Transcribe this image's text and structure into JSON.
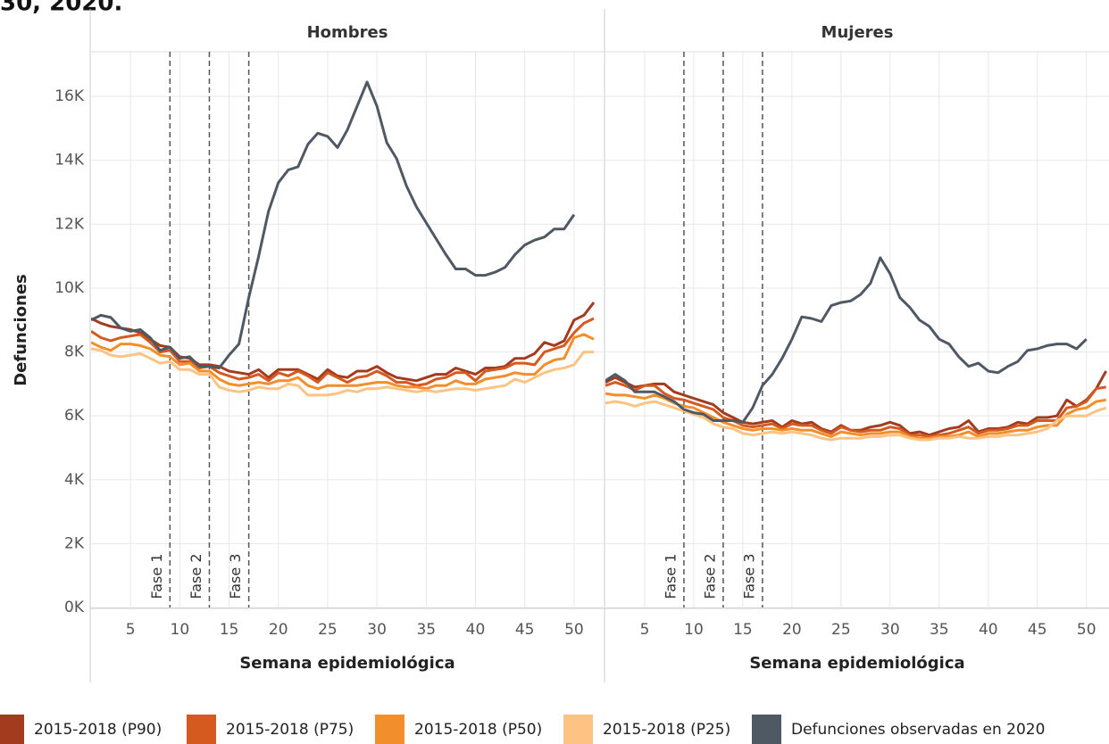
{
  "header": "30, 2020.",
  "chart_data": [
    {
      "type": "line",
      "title": "Hombres",
      "x_label": "Semana epidemiológica",
      "y_label": "Defunciones",
      "xlim": [
        1,
        53
      ],
      "xticks": [
        5,
        10,
        15,
        20,
        25,
        30,
        35,
        40,
        45,
        50
      ],
      "ylim": [
        0,
        17400
      ],
      "yticks": [
        {
          "value": 0,
          "label": "0K"
        },
        {
          "value": 2000,
          "label": "2K"
        },
        {
          "value": 4000,
          "label": "4K"
        },
        {
          "value": 6000,
          "label": "6K"
        },
        {
          "value": 8000,
          "label": "8K"
        },
        {
          "value": 10000,
          "label": "10K"
        },
        {
          "value": 12000,
          "label": "12K"
        },
        {
          "value": 14000,
          "label": "14K"
        },
        {
          "value": 16000,
          "label": "16K"
        }
      ],
      "grid": true,
      "phases": [
        {
          "x": 9,
          "label": "Fase 1"
        },
        {
          "x": 13,
          "label": "Fase 2"
        },
        {
          "x": 17,
          "label": "Fase 3"
        }
      ],
      "x": [
        1,
        2,
        3,
        4,
        5,
        6,
        7,
        8,
        9,
        10,
        11,
        12,
        13,
        14,
        15,
        16,
        17,
        18,
        19,
        20,
        21,
        22,
        23,
        24,
        25,
        26,
        27,
        28,
        29,
        30,
        31,
        32,
        33,
        34,
        35,
        36,
        37,
        38,
        39,
        40,
        41,
        42,
        43,
        44,
        45,
        46,
        47,
        48,
        49,
        50,
        51,
        52
      ],
      "series": [
        {
          "name": "2015-2018 (P90)",
          "color": "#a33b1f",
          "values": [
            9050,
            8900,
            8800,
            8750,
            8700,
            8600,
            8400,
            8200,
            8150,
            7850,
            7800,
            7600,
            7600,
            7550,
            7400,
            7350,
            7300,
            7450,
            7200,
            7450,
            7450,
            7450,
            7300,
            7150,
            7450,
            7250,
            7200,
            7400,
            7400,
            7550,
            7350,
            7200,
            7150,
            7100,
            7200,
            7300,
            7300,
            7500,
            7400,
            7300,
            7500,
            7500,
            7550,
            7800,
            7800,
            7950,
            8300,
            8200,
            8350,
            9000,
            9150,
            9550
          ]
        },
        {
          "name": "2015-2018 (P75)",
          "color": "#d45a1f",
          "values": [
            8650,
            8450,
            8350,
            8450,
            8500,
            8550,
            8300,
            8000,
            8050,
            7700,
            7700,
            7500,
            7550,
            7350,
            7250,
            7150,
            7200,
            7300,
            7100,
            7350,
            7250,
            7400,
            7250,
            7050,
            7350,
            7200,
            7050,
            7200,
            7250,
            7400,
            7250,
            7050,
            7050,
            6950,
            7000,
            7150,
            7200,
            7350,
            7350,
            7100,
            7400,
            7450,
            7500,
            7650,
            7650,
            7600,
            8000,
            8100,
            8200,
            8600,
            8900,
            9050
          ]
        },
        {
          "name": "2015-2018 (P50)",
          "color": "#f28e2b",
          "values": [
            8300,
            8150,
            8050,
            8250,
            8250,
            8200,
            8100,
            7900,
            7850,
            7600,
            7650,
            7400,
            7400,
            7150,
            7000,
            6950,
            7000,
            7050,
            7000,
            7100,
            7100,
            7200,
            6950,
            6850,
            6950,
            6950,
            6950,
            6950,
            7000,
            7050,
            7050,
            6950,
            6900,
            6900,
            6850,
            6950,
            6950,
            7100,
            7000,
            7000,
            7150,
            7200,
            7250,
            7350,
            7300,
            7300,
            7600,
            7750,
            7800,
            8450,
            8550,
            8400
          ]
        },
        {
          "name": "2015-2018 (P25)",
          "color": "#fdc383",
          "values": [
            8100,
            8050,
            7900,
            7850,
            7900,
            7950,
            7800,
            7650,
            7700,
            7450,
            7450,
            7300,
            7300,
            6900,
            6800,
            6750,
            6800,
            6900,
            6850,
            6850,
            7000,
            6950,
            6650,
            6650,
            6650,
            6700,
            6800,
            6750,
            6850,
            6850,
            6900,
            6850,
            6800,
            6750,
            6800,
            6750,
            6800,
            6850,
            6850,
            6800,
            6850,
            6900,
            6950,
            7150,
            7050,
            7200,
            7350,
            7450,
            7500,
            7600,
            8000,
            8000
          ]
        },
        {
          "name": "Defunciones observadas en 2020",
          "color": "#4e5964",
          "values": [
            9000,
            9150,
            9080,
            8750,
            8650,
            8700,
            8450,
            8050,
            8150,
            7800,
            7850,
            7550,
            7550,
            7500,
            7900,
            8250,
            9700,
            11000,
            12400,
            13300,
            13700,
            13800,
            14500,
            14850,
            14750,
            14400,
            14950,
            15700,
            16450,
            15700,
            14550,
            14050,
            13200,
            12550,
            12050,
            11550,
            11050,
            10600,
            10600,
            10400,
            10400,
            10500,
            10650,
            11050,
            11350,
            11500,
            11600,
            11850,
            11850,
            12300,
            null,
            null
          ]
        }
      ]
    },
    {
      "type": "line",
      "title": "Mujeres",
      "x_label": "Semana epidemiológica",
      "xlim": [
        1,
        52.3
      ],
      "xticks": [
        5,
        10,
        15,
        20,
        25,
        30,
        35,
        40,
        45,
        50
      ],
      "ylim": [
        0,
        17400
      ],
      "grid": true,
      "phases": [
        {
          "x": 9,
          "label": "Fase 1"
        },
        {
          "x": 13,
          "label": "Fase 2"
        },
        {
          "x": 17,
          "label": "Fase 3"
        }
      ],
      "x": [
        1,
        2,
        3,
        4,
        5,
        6,
        7,
        8,
        9,
        10,
        11,
        12,
        13,
        14,
        15,
        16,
        17,
        18,
        19,
        20,
        21,
        22,
        23,
        24,
        25,
        26,
        27,
        28,
        29,
        30,
        31,
        32,
        33,
        34,
        35,
        36,
        37,
        38,
        39,
        40,
        41,
        42,
        43,
        44,
        45,
        46,
        47,
        48,
        49,
        50,
        51,
        52
      ],
      "series": [
        {
          "name": "2015-2018 (P90)",
          "color": "#a33b1f",
          "values": [
            7050,
            7200,
            7050,
            6900,
            6950,
            7000,
            7000,
            6750,
            6650,
            6550,
            6450,
            6350,
            6100,
            5950,
            5800,
            5750,
            5800,
            5850,
            5650,
            5850,
            5750,
            5800,
            5600,
            5500,
            5700,
            5550,
            5550,
            5650,
            5700,
            5800,
            5700,
            5450,
            5500,
            5400,
            5500,
            5600,
            5650,
            5850,
            5500,
            5600,
            5600,
            5650,
            5800,
            5750,
            5950,
            5950,
            6000,
            6500,
            6300,
            6500,
            6850,
            7400
          ]
        },
        {
          "name": "2015-2018 (P75)",
          "color": "#d45a1f",
          "values": [
            6950,
            7050,
            6950,
            6800,
            6950,
            6950,
            6700,
            6550,
            6500,
            6400,
            6300,
            6200,
            5950,
            5850,
            5700,
            5650,
            5700,
            5750,
            5600,
            5750,
            5700,
            5700,
            5550,
            5450,
            5650,
            5550,
            5500,
            5550,
            5550,
            5650,
            5600,
            5400,
            5400,
            5350,
            5400,
            5450,
            5550,
            5650,
            5450,
            5550,
            5550,
            5600,
            5700,
            5700,
            5850,
            5850,
            5850,
            6250,
            6300,
            6450,
            6850,
            6900
          ]
        },
        {
          "name": "2015-2018 (P50)",
          "color": "#f28e2b",
          "values": [
            6700,
            6650,
            6650,
            6600,
            6550,
            6650,
            6550,
            6400,
            6300,
            6250,
            6100,
            5950,
            5800,
            5700,
            5600,
            5550,
            5600,
            5600,
            5550,
            5600,
            5550,
            5550,
            5450,
            5350,
            5500,
            5450,
            5400,
            5450,
            5450,
            5500,
            5500,
            5350,
            5300,
            5300,
            5350,
            5350,
            5400,
            5500,
            5350,
            5450,
            5450,
            5500,
            5550,
            5550,
            5650,
            5700,
            5700,
            6050,
            6200,
            6250,
            6450,
            6500
          ]
        },
        {
          "name": "2015-2018 (P25)",
          "color": "#fdc383",
          "values": [
            6400,
            6450,
            6400,
            6300,
            6400,
            6450,
            6350,
            6250,
            6150,
            6050,
            5950,
            5750,
            5650,
            5600,
            5450,
            5400,
            5450,
            5500,
            5450,
            5500,
            5450,
            5400,
            5300,
            5250,
            5300,
            5300,
            5300,
            5350,
            5350,
            5400,
            5400,
            5300,
            5250,
            5250,
            5300,
            5300,
            5350,
            5300,
            5300,
            5350,
            5350,
            5400,
            5400,
            5450,
            5500,
            5600,
            5850,
            6000,
            6000,
            6000,
            6150,
            6250
          ]
        },
        {
          "name": "Defunciones observadas en 2020",
          "color": "#4e5964",
          "values": [
            7100,
            7300,
            7100,
            6750,
            6750,
            6750,
            6600,
            6450,
            6200,
            6100,
            6050,
            5850,
            5850,
            5850,
            5800,
            6250,
            6950,
            7300,
            7800,
            8400,
            9100,
            9050,
            8950,
            9450,
            9550,
            9600,
            9800,
            10150,
            10950,
            10450,
            9700,
            9400,
            9000,
            8800,
            8400,
            8250,
            7850,
            7550,
            7650,
            7400,
            7350,
            7550,
            7700,
            8050,
            8100,
            8200,
            8250,
            8250,
            8100,
            8400,
            null,
            null
          ]
        }
      ]
    }
  ]
}
